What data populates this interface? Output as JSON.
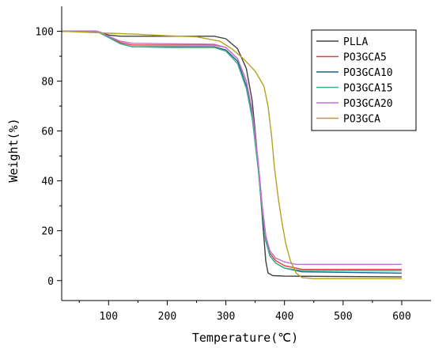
{
  "chart_data": {
    "type": "line",
    "title": "",
    "xlabel": "Temperature(℃)",
    "ylabel": "Weight(%)",
    "xlim": [
      20,
      650
    ],
    "ylim": [
      -8,
      110
    ],
    "x_ticks": [
      100,
      200,
      300,
      400,
      500,
      600
    ],
    "y_ticks": [
      0,
      20,
      40,
      60,
      80,
      100
    ],
    "grid": false,
    "legend_position": "top-right",
    "series": [
      {
        "name": "PLLA",
        "color": "#404040",
        "points": [
          [
            20,
            100
          ],
          [
            80,
            100
          ],
          [
            100,
            98.5
          ],
          [
            120,
            98
          ],
          [
            200,
            98
          ],
          [
            280,
            98
          ],
          [
            300,
            97
          ],
          [
            320,
            93
          ],
          [
            335,
            85
          ],
          [
            345,
            72
          ],
          [
            352,
            55
          ],
          [
            358,
            38
          ],
          [
            364,
            20
          ],
          [
            368,
            8
          ],
          [
            372,
            3
          ],
          [
            380,
            2
          ],
          [
            400,
            1.8
          ],
          [
            600,
            1.5
          ]
        ]
      },
      {
        "name": "PO3GCA5",
        "color": "#e0403f",
        "points": [
          [
            20,
            100
          ],
          [
            80,
            100
          ],
          [
            100,
            98
          ],
          [
            120,
            95.5
          ],
          [
            140,
            94.5
          ],
          [
            200,
            94.5
          ],
          [
            280,
            94.5
          ],
          [
            300,
            93.5
          ],
          [
            320,
            89
          ],
          [
            335,
            80
          ],
          [
            345,
            68
          ],
          [
            355,
            48
          ],
          [
            362,
            30
          ],
          [
            368,
            18
          ],
          [
            375,
            11
          ],
          [
            385,
            8
          ],
          [
            400,
            6
          ],
          [
            430,
            4.5
          ],
          [
            600,
            4.5
          ]
        ]
      },
      {
        "name": "PO3GCA10",
        "color": "#1f5f8b",
        "points": [
          [
            20,
            100
          ],
          [
            80,
            100
          ],
          [
            100,
            97.5
          ],
          [
            120,
            95
          ],
          [
            140,
            93.8
          ],
          [
            200,
            93.8
          ],
          [
            280,
            93.8
          ],
          [
            300,
            92.5
          ],
          [
            320,
            88
          ],
          [
            335,
            78
          ],
          [
            345,
            66
          ],
          [
            355,
            46
          ],
          [
            362,
            28
          ],
          [
            368,
            16
          ],
          [
            375,
            10
          ],
          [
            385,
            7
          ],
          [
            400,
            5
          ],
          [
            430,
            3.5
          ],
          [
            600,
            3
          ]
        ]
      },
      {
        "name": "PO3GCA15",
        "color": "#3cb08a",
        "points": [
          [
            20,
            100
          ],
          [
            80,
            100
          ],
          [
            100,
            97.5
          ],
          [
            120,
            95
          ],
          [
            140,
            93.8
          ],
          [
            200,
            93.5
          ],
          [
            280,
            93.5
          ],
          [
            300,
            92
          ],
          [
            320,
            87
          ],
          [
            335,
            77
          ],
          [
            345,
            65
          ],
          [
            355,
            45
          ],
          [
            362,
            28
          ],
          [
            368,
            16
          ],
          [
            375,
            10
          ],
          [
            385,
            7
          ],
          [
            400,
            5
          ],
          [
            430,
            4
          ],
          [
            600,
            4
          ]
        ]
      },
      {
        "name": "PO3GCA20",
        "color": "#c070d8",
        "points": [
          [
            20,
            100
          ],
          [
            80,
            100
          ],
          [
            100,
            98
          ],
          [
            120,
            96
          ],
          [
            140,
            95.2
          ],
          [
            200,
            95
          ],
          [
            280,
            94.8
          ],
          [
            300,
            93.5
          ],
          [
            320,
            89
          ],
          [
            335,
            80
          ],
          [
            345,
            68
          ],
          [
            355,
            48
          ],
          [
            362,
            30
          ],
          [
            368,
            18
          ],
          [
            375,
            12
          ],
          [
            385,
            9
          ],
          [
            400,
            7.5
          ],
          [
            420,
            6.5
          ],
          [
            600,
            6.5
          ]
        ]
      },
      {
        "name": "PO3GCA",
        "color": "#b8a020",
        "points": [
          [
            20,
            100
          ],
          [
            100,
            99.2
          ],
          [
            150,
            98.8
          ],
          [
            200,
            98.2
          ],
          [
            250,
            97.8
          ],
          [
            290,
            96
          ],
          [
            310,
            93
          ],
          [
            330,
            89
          ],
          [
            350,
            84
          ],
          [
            365,
            78
          ],
          [
            372,
            70
          ],
          [
            378,
            58
          ],
          [
            383,
            45
          ],
          [
            390,
            32
          ],
          [
            396,
            23
          ],
          [
            402,
            15
          ],
          [
            410,
            8
          ],
          [
            420,
            3
          ],
          [
            430,
            1.2
          ],
          [
            450,
            0.8
          ],
          [
            600,
            0.8
          ]
        ]
      }
    ]
  }
}
